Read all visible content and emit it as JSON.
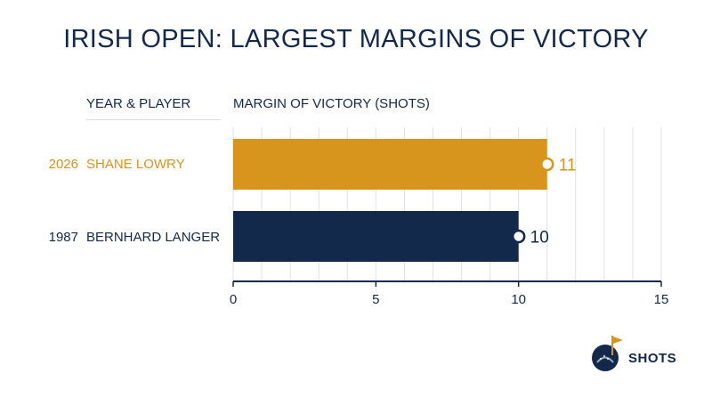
{
  "chart_data": {
    "type": "bar",
    "orientation": "horizontal",
    "title": "IRISH OPEN: LARGEST MARGINS OF VICTORY",
    "column_headers": {
      "left": "YEAR & PLAYER",
      "right": "MARGIN OF VICTORY (SHOTS)"
    },
    "rows": [
      {
        "year": "2026",
        "player": "SHANE LOWRY",
        "value": 11,
        "color": "#d8951e"
      },
      {
        "year": "1987",
        "player": "BERNHARD LANGER",
        "value": 10,
        "color": "#13294b"
      }
    ],
    "xlim": [
      0,
      15
    ],
    "x_ticks": [
      0,
      5,
      10,
      15
    ],
    "grid": true
  },
  "brand": {
    "logo_text": "SHOTS",
    "primary": "#13294b",
    "accent": "#d8951e",
    "icon": "golf-ball-flag-icon"
  }
}
